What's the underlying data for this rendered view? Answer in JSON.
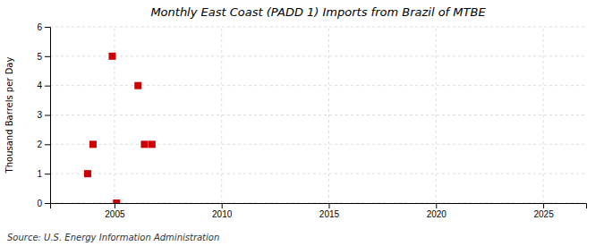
{
  "chart_data": {
    "type": "scatter",
    "title": "Monthly East Coast (PADD 1) Imports from Brazil of MTBE",
    "ylabel": "Thousand Barrels per Day",
    "source": "Source: U.S. Energy Information Administration",
    "x": [
      2003.75,
      2004.0,
      2004.9,
      2005.1,
      2006.1,
      2006.4,
      2006.75
    ],
    "values": [
      1,
      2,
      5,
      0,
      4,
      2,
      2
    ],
    "xlim": [
      2002,
      2027
    ],
    "ylim": [
      0,
      6
    ],
    "xticks": [
      2005,
      2010,
      2015,
      2020,
      2025
    ],
    "yticks": [
      0,
      1,
      2,
      3,
      4,
      5,
      6
    ],
    "grid": true,
    "color": "#cc0000",
    "marker": "square"
  }
}
